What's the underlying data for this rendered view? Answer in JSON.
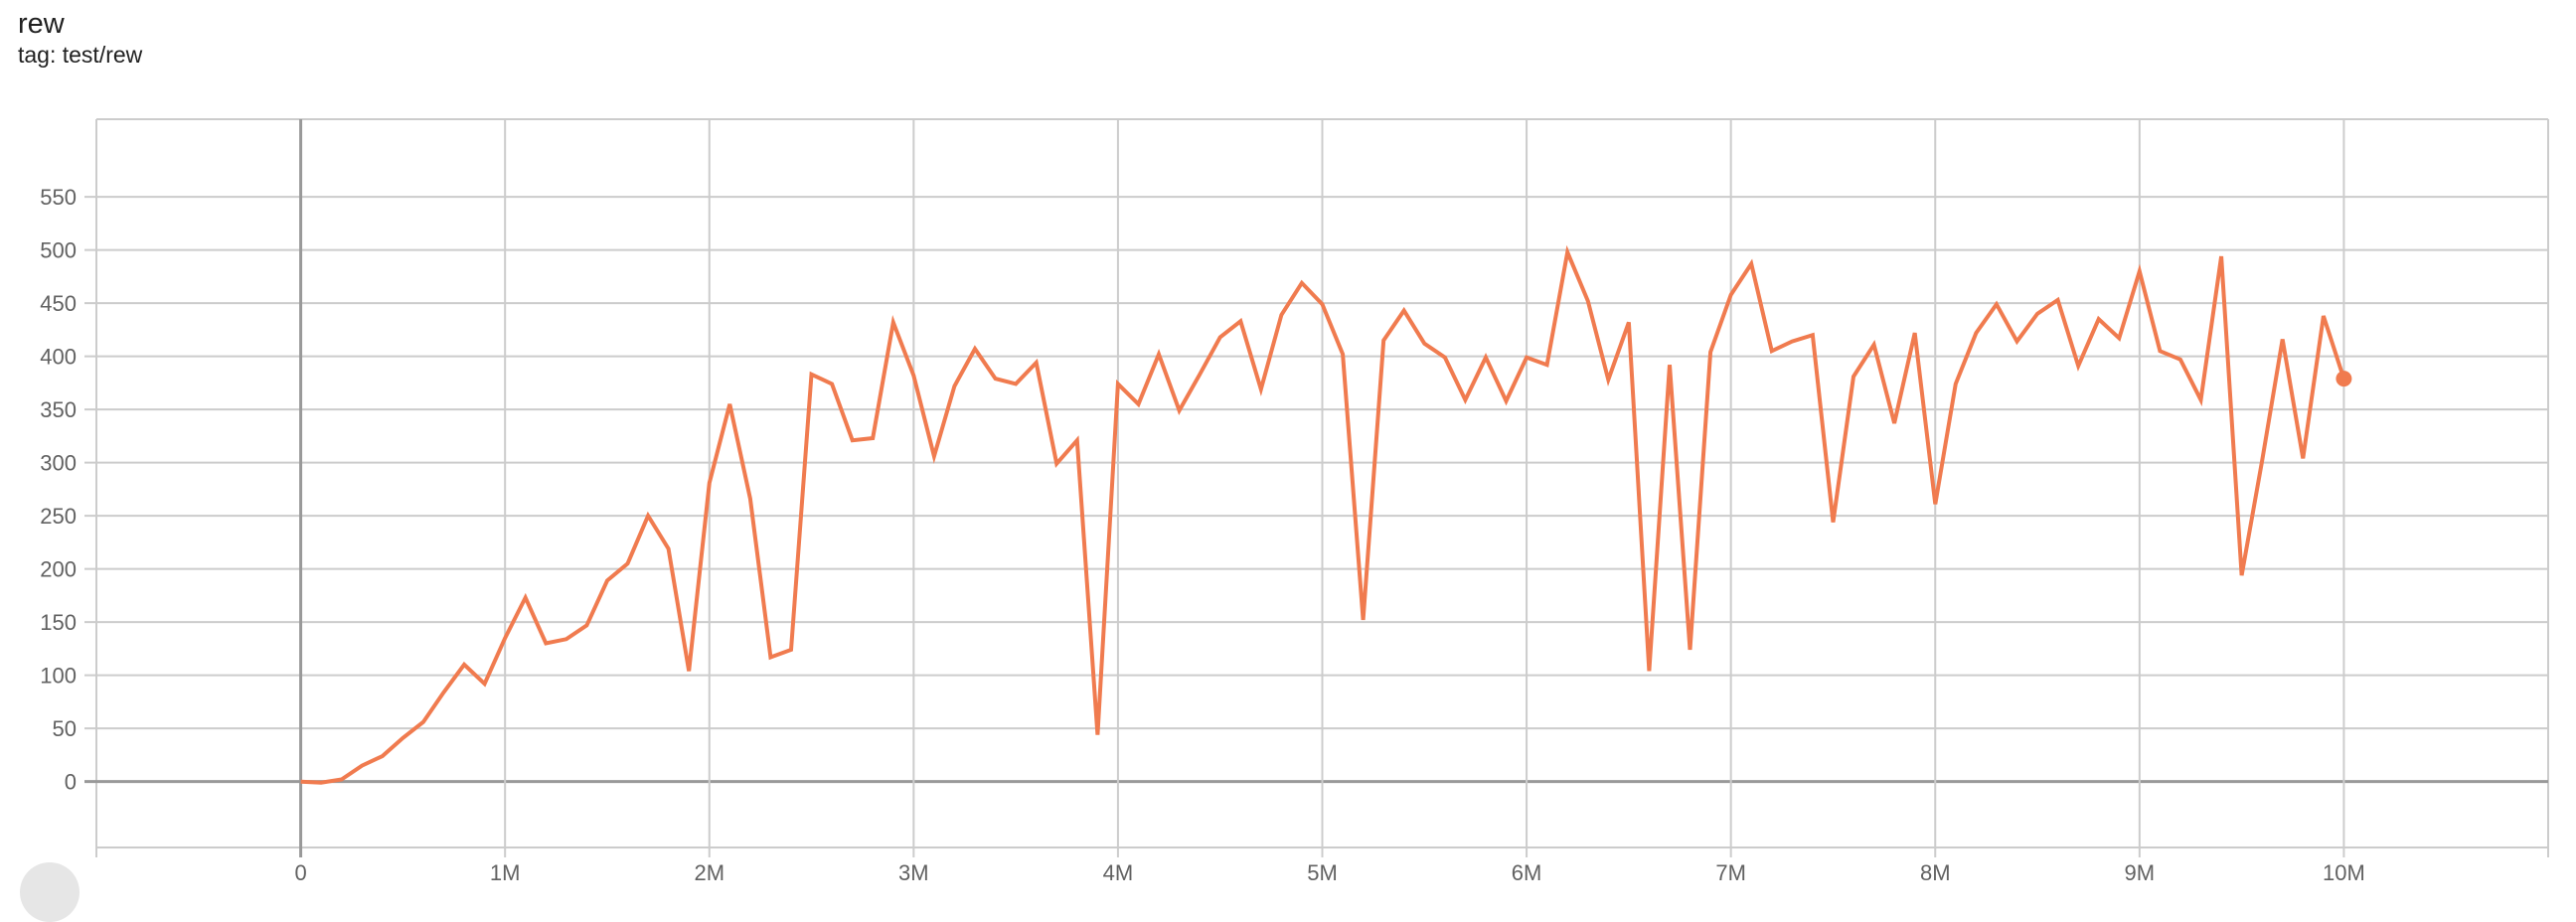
{
  "header": {
    "title": "rew",
    "subtitle": "tag: test/rew"
  },
  "colors": {
    "series": "#f07b4f",
    "grid": "#cccccc",
    "axis": "#999999"
  },
  "chart_data": {
    "type": "line",
    "title": "rew",
    "subtitle": "tag: test/rew",
    "xlabel": "",
    "ylabel": "",
    "xlim": [
      -1000000,
      11000000
    ],
    "ylim": [
      -62,
      623
    ],
    "grid": true,
    "x_ticks": [
      0,
      1000000,
      2000000,
      3000000,
      4000000,
      5000000,
      6000000,
      7000000,
      8000000,
      9000000,
      10000000
    ],
    "x_tick_labels": [
      "0",
      "1M",
      "2M",
      "3M",
      "4M",
      "5M",
      "6M",
      "7M",
      "8M",
      "9M",
      "10M"
    ],
    "y_ticks": [
      0,
      50,
      100,
      150,
      200,
      250,
      300,
      350,
      400,
      450,
      500,
      550
    ],
    "y_tick_labels": [
      "0",
      "50",
      "100",
      "150",
      "200",
      "250",
      "300",
      "350",
      "400",
      "450",
      "500",
      "550"
    ],
    "series": [
      {
        "x_step": 100000,
        "values": [
          0,
          -1,
          2,
          15,
          24,
          41,
          56,
          84,
          110,
          92,
          135,
          173,
          130,
          134,
          147,
          189,
          205,
          250,
          219,
          104,
          281,
          355,
          266,
          117,
          124,
          383,
          374,
          321,
          323,
          432,
          382,
          306,
          372,
          407,
          379,
          374,
          394,
          299,
          321,
          44,
          374,
          355,
          402,
          349,
          383,
          418,
          433,
          369,
          439,
          469,
          449,
          402,
          152,
          415,
          443,
          412,
          399,
          359,
          399,
          358,
          399,
          392,
          498,
          452,
          378,
          432,
          104,
          392,
          124,
          404,
          458,
          487,
          405,
          414,
          420,
          244,
          381,
          411,
          337,
          422,
          261,
          374,
          422,
          449,
          414,
          440,
          453,
          391,
          435,
          417,
          480,
          405,
          397,
          359,
          494,
          194,
          302,
          416,
          304,
          438,
          379
        ]
      }
    ]
  }
}
